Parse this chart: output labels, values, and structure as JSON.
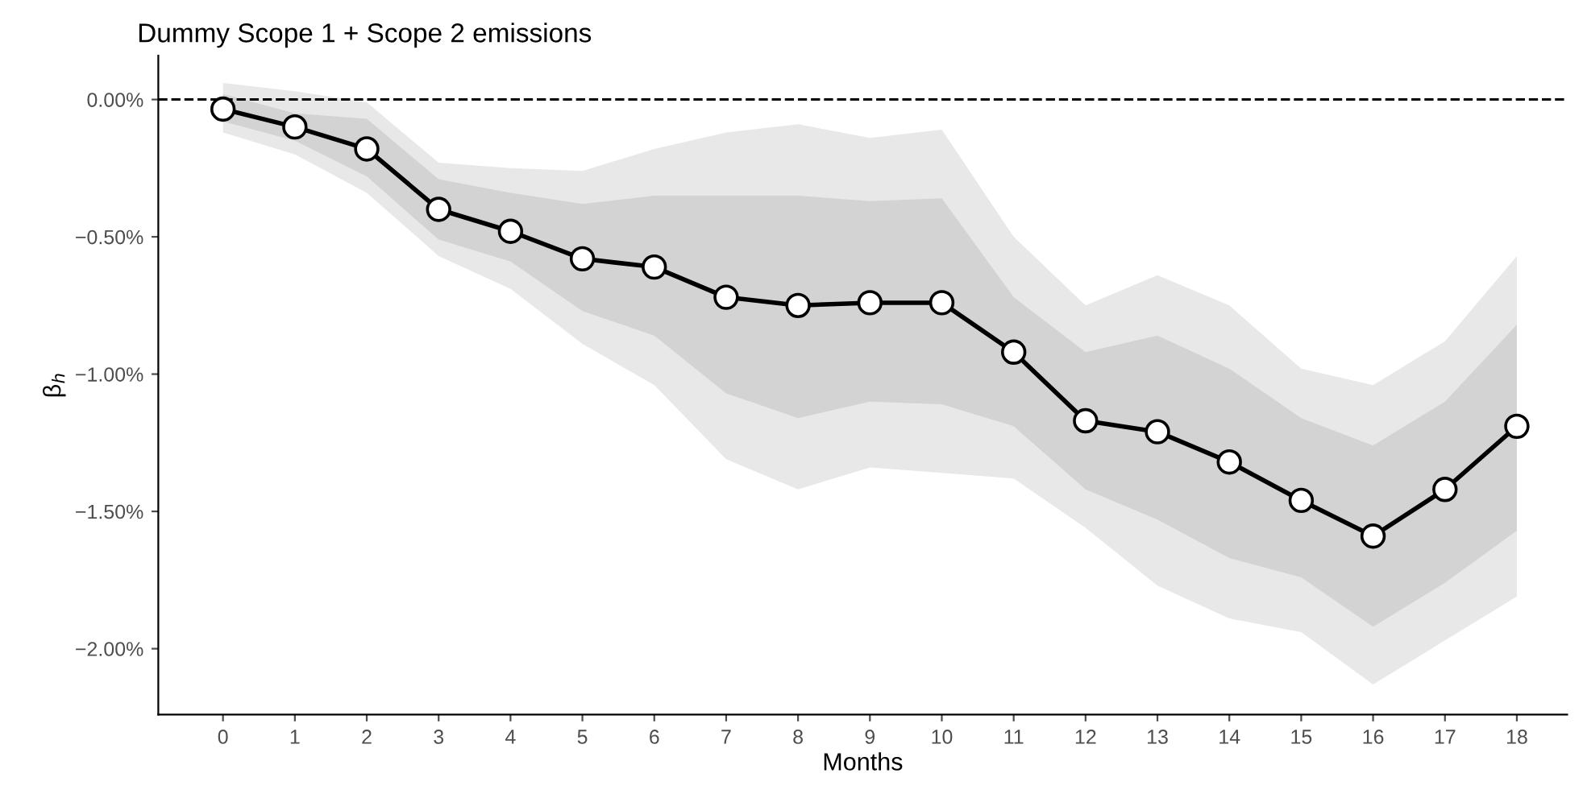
{
  "chart_data": {
    "type": "line",
    "title": "Dummy Scope 1 + Scope 2 emissions",
    "xlabel": "Months",
    "ylabel": "β$_{h}$",
    "x": [
      0,
      1,
      2,
      3,
      4,
      5,
      6,
      7,
      8,
      9,
      10,
      11,
      12,
      13,
      14,
      15,
      16,
      17,
      18
    ],
    "series": [
      {
        "color": "#000000",
        "values": [
          -0.035,
          -0.1,
          -0.18,
          -0.4,
          -0.48,
          -0.58,
          -0.61,
          -0.72,
          -0.75,
          -0.74,
          -0.74,
          -0.92,
          -1.17,
          -1.21,
          -1.32,
          -1.46,
          -1.59,
          -1.42,
          -1.19
        ],
        "lower": [
          -0.12,
          -0.2,
          -0.34,
          -0.57,
          -0.69,
          -0.89,
          -1.04,
          -1.31,
          -1.42,
          -1.34,
          -1.36,
          -1.38,
          -1.56,
          -1.77,
          -1.89,
          -1.94,
          -2.13,
          -1.97,
          -1.81
        ],
        "upper": [
          0.06,
          0.03,
          -0.01,
          -0.23,
          -0.25,
          -0.26,
          -0.18,
          -0.12,
          -0.09,
          -0.14,
          -0.11,
          -0.5,
          -0.75,
          -0.64,
          -0.75,
          -0.98,
          -1.04,
          -0.88,
          -0.57
        ]
      },
      {
        "color": "#000000",
        "values": [
          null,
          null,
          null,
          null,
          null,
          null,
          null,
          null,
          null,
          null,
          null,
          null,
          null,
          null,
          null,
          null,
          null,
          null,
          null
        ],
        "lower": [
          -0.08,
          -0.15,
          -0.28,
          -0.51,
          -0.59,
          -0.77,
          -0.86,
          -1.07,
          -1.16,
          -1.1,
          -1.11,
          -1.19,
          -1.42,
          -1.53,
          -1.67,
          -1.74,
          -1.92,
          -1.76,
          -1.57
        ],
        "upper": [
          0.02,
          -0.05,
          -0.07,
          -0.29,
          -0.34,
          -0.38,
          -0.35,
          -0.35,
          -0.35,
          -0.37,
          -0.36,
          -0.72,
          -0.92,
          -0.86,
          -0.98,
          -1.16,
          -1.26,
          -1.1,
          -0.82
        ]
      }
    ],
    "marker": "circle",
    "line_style": "solid",
    "grid": false,
    "legend": false,
    "xlim": [
      -0.9,
      18.7
    ],
    "xticks": [
      0,
      1,
      2,
      3,
      4,
      5,
      6,
      7,
      8,
      9,
      10,
      11,
      12,
      13,
      14,
      15,
      16,
      17,
      18
    ],
    "ylim": [
      -2.24,
      0.16
    ],
    "yticks": [
      {
        "value": 0,
        "label": "0.00%"
      },
      {
        "value": -0.5,
        "label": "−0.50%"
      },
      {
        "value": -1,
        "label": "−1.00%"
      },
      {
        "value": -1.5,
        "label": "−1.50%"
      },
      {
        "value": -2,
        "label": "−2.00%"
      }
    ],
    "ref_lines": [
      {
        "axis": "y",
        "value": 0,
        "label": null,
        "line_style": "dashed",
        "color": "#000000"
      }
    ]
  }
}
